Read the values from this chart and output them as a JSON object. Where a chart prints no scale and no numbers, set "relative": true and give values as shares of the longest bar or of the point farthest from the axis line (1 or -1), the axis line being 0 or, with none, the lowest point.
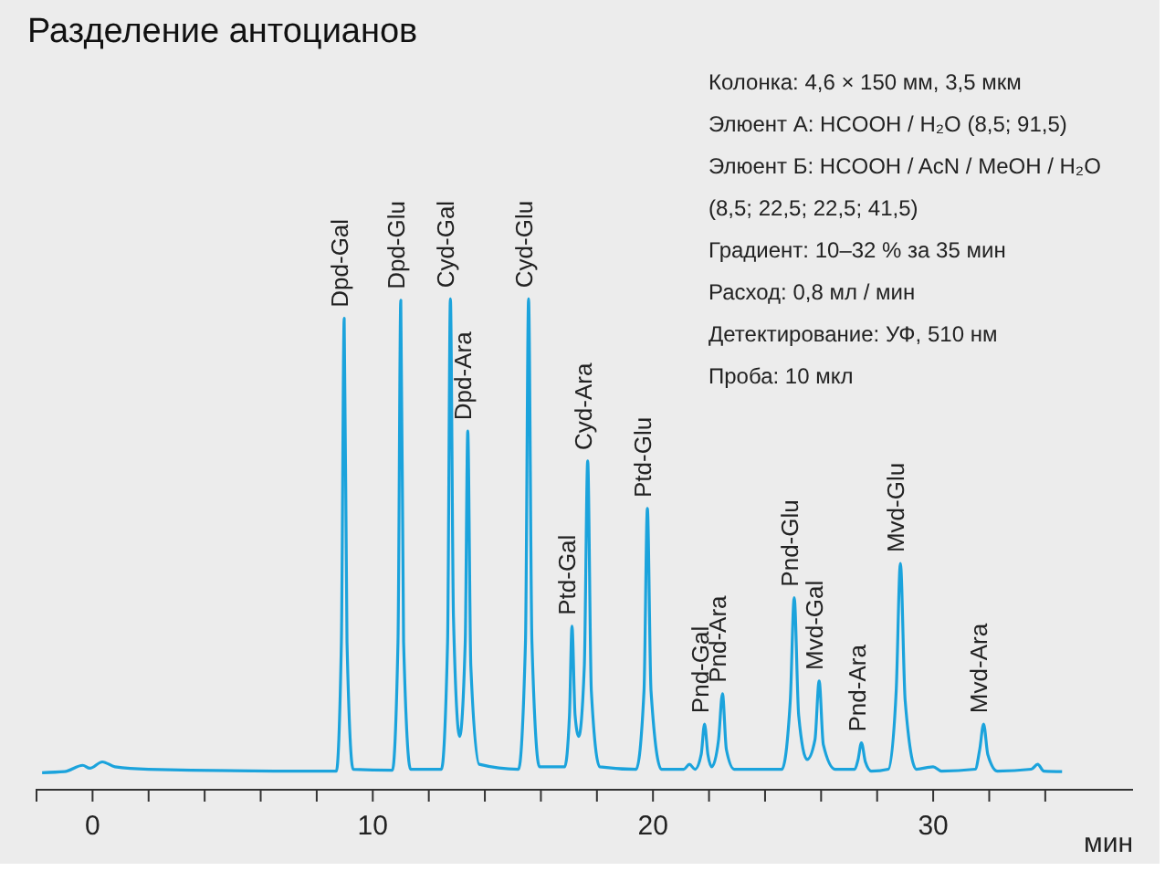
{
  "chart_data": {
    "type": "line",
    "title": "Разделение антоцианов",
    "xlabel": "мин",
    "relative": true,
    "series": [
      {
        "color": "#1ba3dc",
        "x": [
          -1.8,
          -1.0,
          -0.35,
          -0.1,
          0.35,
          0.8,
          2,
          8,
          8.7,
          8.88,
          8.98,
          9.08,
          9.3,
          10.7,
          10.9,
          11.0,
          11.1,
          11.35,
          12.45,
          12.67,
          12.77,
          12.88,
          13.1,
          13.3,
          13.39,
          13.5,
          13.8,
          15.2,
          15.45,
          15.56,
          15.68,
          15.95,
          16.85,
          17.02,
          17.11,
          17.22,
          17.35,
          17.55,
          17.67,
          17.8,
          18.1,
          19.4,
          19.68,
          19.8,
          19.93,
          20.3,
          21.1,
          21.3,
          21.5,
          21.72,
          21.84,
          21.96,
          22.1,
          22.34,
          22.48,
          22.62,
          22.9,
          24.6,
          24.9,
          25.04,
          25.2,
          25.5,
          25.78,
          25.93,
          26.08,
          26.5,
          27.2,
          27.32,
          27.44,
          27.58,
          27.8,
          28.4,
          28.68,
          28.83,
          29.0,
          29.4,
          30,
          30.3,
          31.5,
          31.66,
          31.8,
          31.95,
          32.3,
          33.5,
          33.73,
          33.95,
          34.6
        ],
        "values": [
          0.033,
          0.035,
          0.048,
          0.042,
          0.055,
          0.045,
          0.04,
          0.036,
          0.036,
          0.3,
          0.96,
          0.3,
          0.04,
          0.038,
          0.3,
          0.997,
          0.3,
          0.04,
          0.04,
          0.3,
          1.0,
          0.35,
          0.107,
          0.3,
          0.73,
          0.25,
          0.05,
          0.04,
          0.3,
          1.0,
          0.3,
          0.045,
          0.045,
          0.15,
          0.332,
          0.15,
          0.107,
          0.25,
          0.669,
          0.2,
          0.045,
          0.04,
          0.2,
          0.572,
          0.2,
          0.04,
          0.04,
          0.05,
          0.04,
          0.07,
          0.132,
          0.07,
          0.045,
          0.1,
          0.194,
          0.08,
          0.04,
          0.04,
          0.18,
          0.39,
          0.15,
          0.06,
          0.1,
          0.22,
          0.09,
          0.04,
          0.04,
          0.06,
          0.094,
          0.055,
          0.036,
          0.04,
          0.2,
          0.46,
          0.18,
          0.04,
          0.045,
          0.036,
          0.04,
          0.08,
          0.132,
          0.07,
          0.036,
          0.04,
          0.05,
          0.036,
          0.035
        ]
      }
    ],
    "xlim": [
      -2,
      37.1
    ],
    "xticks": [
      {
        "value": -2,
        "label": null
      },
      0,
      {
        "value": 2,
        "label": null
      },
      {
        "value": 4,
        "label": null
      },
      {
        "value": 6,
        "label": null
      },
      {
        "value": 8,
        "label": null
      },
      10,
      {
        "value": 12,
        "label": null
      },
      {
        "value": 14,
        "label": null
      },
      {
        "value": 16,
        "label": null
      },
      {
        "value": 18,
        "label": null
      },
      20,
      {
        "value": 22,
        "label": null
      },
      {
        "value": 24,
        "label": null
      },
      {
        "value": 26,
        "label": null
      },
      {
        "value": 28,
        "label": null
      },
      30,
      {
        "value": 32,
        "label": null
      },
      {
        "value": 34,
        "label": null
      }
    ],
    "grid": false,
    "annotations": [
      {
        "text": "Dpd-Gal",
        "x": 8.98,
        "y": 0.96
      },
      {
        "text": "Dpd-Glu",
        "x": 11.0,
        "y": 0.997
      },
      {
        "text": "Cyd-Gal",
        "x": 12.77,
        "y": 1.0
      },
      {
        "text": "Dpd-Ara",
        "x": 13.39,
        "y": 0.73
      },
      {
        "text": "Cyd-Glu",
        "x": 15.56,
        "y": 1.0
      },
      {
        "text": "Ptd-Gal",
        "x": 17.11,
        "y": 0.332
      },
      {
        "text": "Cyd-Ara",
        "x": 17.67,
        "y": 0.669
      },
      {
        "text": "Ptd-Glu",
        "x": 19.8,
        "y": 0.572
      },
      {
        "text": "Pnd-Gal",
        "x": 21.84,
        "y": 0.132
      },
      {
        "text": "Pnd-Ara",
        "x": 22.48,
        "y": 0.194
      },
      {
        "text": "Pnd-Glu",
        "x": 25.04,
        "y": 0.39
      },
      {
        "text": "Mvd-Gal",
        "x": 25.93,
        "y": 0.22
      },
      {
        "text": "Pnd-Ara",
        "x": 27.44,
        "y": 0.094
      },
      {
        "text": "Mvd-Glu",
        "x": 28.83,
        "y": 0.46
      },
      {
        "text": "Mvd-Ara",
        "x": 31.8,
        "y": 0.132
      },
      "Колонка: 4,6 × 150 мм, 3,5 мкм",
      "Элюент А: HCOOH / H₂O (8,5; 91,5)",
      "Элюент Б: HCOOH / AcN / MeOH / H₂O",
      "(8,5; 22,5; 22,5; 41,5)",
      "Градиент: 10–32 % за 35 мин",
      "Расход: 0,8 мл / мин",
      "Детектирование: УФ, 510 нм",
      "Проба: 10 мкл"
    ]
  }
}
